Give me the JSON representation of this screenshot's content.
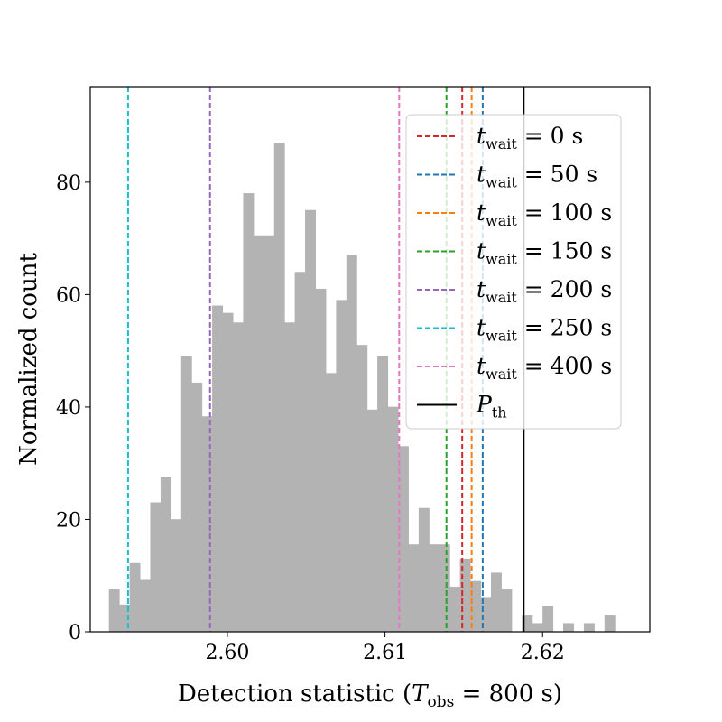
{
  "chart_data": {
    "type": "bar",
    "title": "",
    "xlabel": "Detection statistic (T_obs = 800 s)",
    "xlabel_parts": {
      "prefix": "Detection statistic (",
      "var": "T",
      "sub": "obs",
      "suffix": " = 800 s)"
    },
    "ylabel": "Normalized count",
    "xlim": [
      2.5913,
      2.6268
    ],
    "ylim": [
      0,
      97
    ],
    "x_ticks": [
      2.6,
      2.61,
      2.62
    ],
    "x_tick_labels": [
      "2.60",
      "2.61",
      "2.62"
    ],
    "y_ticks": [
      0,
      20,
      40,
      60,
      80
    ],
    "y_tick_labels": [
      "0",
      "20",
      "40",
      "60",
      "80"
    ],
    "bin_start": 2.5925,
    "bin_width": 0.000655,
    "histogram_counts": [
      7.5,
      4.8,
      12.2,
      9.2,
      23.0,
      27.5,
      20.0,
      49.0,
      44.3,
      38.3,
      58.0,
      56.7,
      55.0,
      78.0,
      70.5,
      70.5,
      87.0,
      55.0,
      64.0,
      75.0,
      61.0,
      46.0,
      59.0,
      67.0,
      51.0,
      39.5,
      49.0,
      40.0,
      33.0,
      15.5,
      22.0,
      15.5,
      15.5,
      8.0,
      13.0,
      9.0,
      6.0,
      10.5,
      7.5,
      0,
      3.0,
      1.5,
      4.5,
      0,
      1.5,
      0,
      1.5,
      0,
      3.0
    ],
    "histogram_color": "#b3b3b3",
    "grid": false,
    "legend_position": "upper-right",
    "vertical_lines": [
      {
        "name": "t_wait = 0 s",
        "value": 2.6149,
        "color": "#d62728",
        "style": "dashed",
        "var": "t",
        "sub": "wait",
        "eq": " = 0 s"
      },
      {
        "name": "t_wait = 50 s",
        "value": 2.6162,
        "color": "#1f77b4",
        "style": "dashed",
        "var": "t",
        "sub": "wait",
        "eq": " = 50 s"
      },
      {
        "name": "t_wait = 100 s",
        "value": 2.6155,
        "color": "#ff7f0e",
        "style": "dashed",
        "var": "t",
        "sub": "wait",
        "eq": " = 100 s"
      },
      {
        "name": "t_wait = 150 s",
        "value": 2.6139,
        "color": "#2ca02c",
        "style": "dashed",
        "var": "t",
        "sub": "wait",
        "eq": " = 150 s"
      },
      {
        "name": "t_wait = 200 s",
        "value": 2.5989,
        "color": "#9467bd",
        "style": "dashed",
        "var": "t",
        "sub": "wait",
        "eq": " = 200 s"
      },
      {
        "name": "t_wait = 250 s",
        "value": 2.5937,
        "color": "#17becf",
        "style": "dashed",
        "var": "t",
        "sub": "wait",
        "eq": " = 250 s"
      },
      {
        "name": "t_wait = 400 s",
        "value": 2.6109,
        "color": "#e377c2",
        "style": "dashed",
        "var": "t",
        "sub": "wait",
        "eq": " = 400 s"
      },
      {
        "name": "P_th",
        "value": 2.6188,
        "color": "#000000",
        "style": "solid",
        "var": "P",
        "sub": "th",
        "eq": ""
      }
    ]
  }
}
